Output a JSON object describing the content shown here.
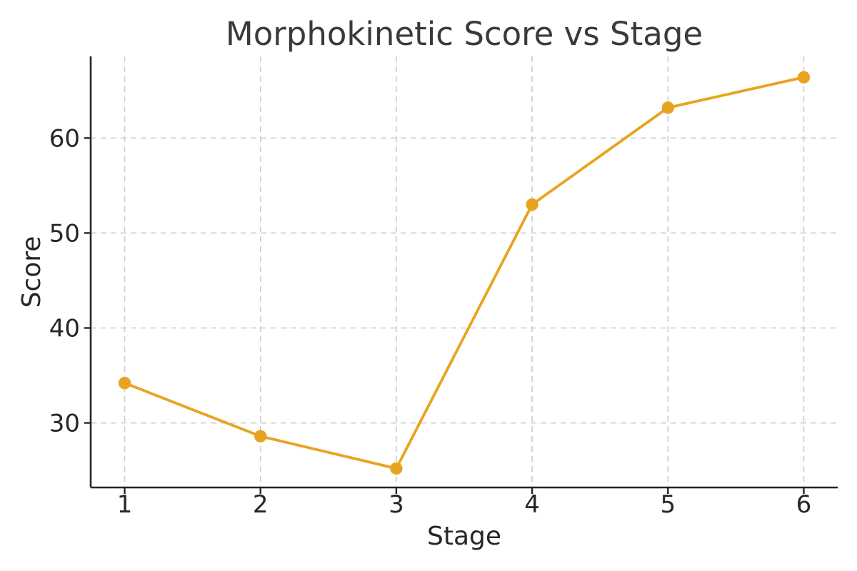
{
  "chart_data": {
    "type": "line",
    "title": "Morphokinetic Score vs Stage",
    "xlabel": "Stage",
    "ylabel": "Score",
    "series": [
      {
        "name": "Morphokinetic Score",
        "x": [
          1,
          2,
          3,
          4,
          5,
          6
        ],
        "y": [
          34.2,
          28.6,
          25.2,
          53.0,
          63.2,
          66.4
        ]
      }
    ],
    "xlim": [
      0.75,
      6.25
    ],
    "ylim": [
      23.2,
      68.6
    ],
    "xticks": [
      "1",
      "2",
      "3",
      "4",
      "5",
      "6"
    ],
    "xtick_values": [
      1,
      2,
      3,
      4,
      5,
      6
    ],
    "yticks": [
      "30",
      "40",
      "50",
      "60"
    ],
    "ytick_values": [
      30,
      40,
      50,
      60
    ],
    "grid": true,
    "grid_style": "dashed",
    "legend": "none",
    "marker": "circle",
    "colors": {
      "line": "#E8A41F",
      "marker": "#E8A41F",
      "grid": "#cccccc",
      "spine": "#262626",
      "tick_text": "#262626",
      "title_text": "#3a3a3a",
      "background": "#ffffff"
    }
  }
}
